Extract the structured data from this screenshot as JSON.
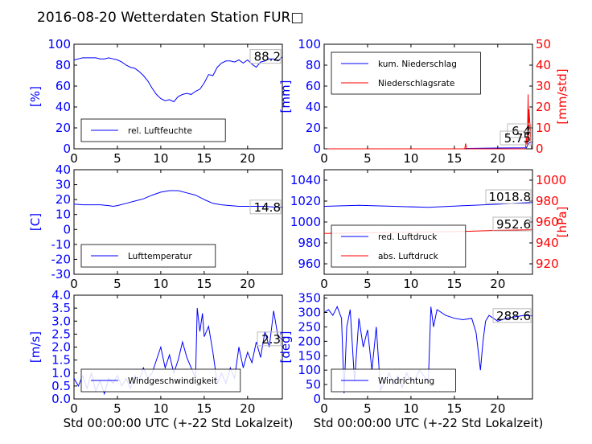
{
  "title": "2016-08-20 Wetterdaten Station FUR□",
  "colors": {
    "primary": "#0000ff",
    "secondary": "#ff0000",
    "axis": "#000000"
  },
  "chart_data": [
    {
      "type": "line",
      "xlim": [
        0,
        24
      ],
      "xticks": [
        0,
        5,
        10,
        15,
        20
      ],
      "ylabel": "[%]",
      "ylim": [
        0,
        100
      ],
      "yticks": [
        0,
        20,
        40,
        60,
        80,
        100
      ],
      "current_value": "88.2",
      "legend": {
        "placement": "lower-left",
        "entries": [
          "rel. Luftfeuchte"
        ]
      },
      "series": [
        {
          "name": "rel. Luftfeuchte",
          "color": "#0000ff",
          "x": [
            0,
            0.5,
            1,
            1.5,
            2,
            2.5,
            3,
            3.5,
            4,
            4.5,
            5,
            5.5,
            6,
            6.5,
            7,
            7.5,
            8,
            8.5,
            9,
            9.5,
            10,
            10.5,
            11,
            11.5,
            12,
            12.5,
            13,
            13.5,
            14,
            14.5,
            15,
            15.5,
            16,
            16.5,
            17,
            17.5,
            18,
            18.5,
            19,
            19.5,
            20,
            20.5,
            21,
            21.5,
            22,
            22.5,
            23,
            23.5,
            24
          ],
          "y": [
            85,
            86,
            87,
            87,
            87,
            87,
            86,
            86,
            87,
            86,
            85,
            83,
            80,
            78,
            77,
            74,
            70,
            65,
            58,
            52,
            48,
            46,
            47,
            45,
            50,
            52,
            53,
            52,
            55,
            57,
            63,
            71,
            70,
            78,
            82,
            84,
            84,
            83,
            85,
            82,
            85,
            81,
            78,
            83,
            84,
            86,
            86,
            84,
            88
          ]
        }
      ]
    },
    {
      "type": "line",
      "xlim": [
        0,
        24
      ],
      "xticks": [
        0,
        5,
        10,
        15,
        20
      ],
      "ylabel": "[mm]",
      "ylim": [
        0,
        100
      ],
      "yticks": [
        0,
        20,
        40,
        60,
        80,
        100
      ],
      "ylabel2": "[mm/std]",
      "ylim2": [
        0,
        50
      ],
      "yticks2": [
        0,
        10,
        20,
        30,
        40,
        50
      ],
      "current_values": [
        "6.4",
        "5.75"
      ],
      "legend": {
        "placement": "upper-left",
        "entries": [
          "kum. Niederschlag",
          "Niederschlagsrate"
        ]
      },
      "series": [
        {
          "name": "kum. Niederschlag",
          "color": "#0000ff",
          "axis": "left",
          "x": [
            0,
            16,
            16.5,
            20,
            23.3,
            23.6,
            24
          ],
          "y": [
            0,
            0,
            0.4,
            0.8,
            1.0,
            5.5,
            6.4
          ]
        },
        {
          "name": "Niederschlagsrate",
          "color": "#ff0000",
          "axis": "right",
          "x": [
            0,
            16.2,
            16.3,
            16.4,
            16.5,
            23.2,
            23.3,
            23.4,
            23.5,
            23.55,
            23.6,
            23.7,
            23.8,
            23.9,
            24
          ],
          "y": [
            0,
            0,
            2.5,
            0.3,
            0,
            0,
            6,
            1,
            26,
            4,
            19,
            12,
            3,
            0,
            0
          ]
        }
      ]
    },
    {
      "type": "line",
      "xlim": [
        0,
        24
      ],
      "xticks": [
        0,
        5,
        10,
        15,
        20
      ],
      "ylabel": "[C]",
      "ylim": [
        -30,
        40
      ],
      "yticks": [
        -30,
        -20,
        -10,
        0,
        10,
        20,
        30,
        40
      ],
      "current_value": "14.8",
      "legend": {
        "placement": "lower-left",
        "entries": [
          "Lufttemperatur"
        ]
      },
      "series": [
        {
          "name": "Lufttemperatur",
          "color": "#0000ff",
          "x": [
            0,
            1,
            2,
            3,
            4,
            4.5,
            5,
            6,
            7,
            8,
            9,
            10,
            11,
            12,
            13,
            14,
            15,
            16,
            16.5,
            17,
            18,
            19,
            20,
            21,
            22,
            23,
            24
          ],
          "y": [
            17,
            16.5,
            16.5,
            16.5,
            16,
            15.5,
            16,
            17.5,
            19,
            20.5,
            23,
            25,
            26,
            26,
            24.5,
            23,
            20,
            17.5,
            17,
            16.5,
            16,
            15.5,
            15.5,
            15.5,
            15.5,
            15,
            14.8
          ]
        }
      ]
    },
    {
      "type": "line",
      "xlim": [
        0,
        24
      ],
      "xticks": [
        0,
        5,
        10,
        15,
        20
      ],
      "ylabel": "",
      "ylim": [
        950,
        1050
      ],
      "yticks": [
        960,
        980,
        1000,
        1020,
        1040
      ],
      "ylabel2": "[hPa]",
      "ylim2": [
        910,
        1010
      ],
      "yticks2": [
        920,
        940,
        960,
        980,
        1000
      ],
      "current_values": [
        "1018.8",
        "952.6"
      ],
      "legend": {
        "placement": "lower-left",
        "entries": [
          "red. Luftdruck",
          "abs. Luftdruck"
        ]
      },
      "series": [
        {
          "name": "red. Luftdruck",
          "color": "#0000ff",
          "axis": "left",
          "x": [
            0,
            4,
            8,
            12,
            16,
            20,
            24
          ],
          "y": [
            1015,
            1016,
            1015,
            1014,
            1015.5,
            1017,
            1018.8
          ]
        },
        {
          "name": "abs. Luftdruck",
          "color": "#ff0000",
          "axis": "right",
          "x": [
            0,
            4,
            8,
            12,
            16,
            20,
            24
          ],
          "y": [
            949,
            949.5,
            950,
            950.5,
            951,
            952,
            952.6
          ]
        }
      ]
    },
    {
      "type": "line",
      "xlabel": "Std 00:00:00 UTC (+-22 Std Lokalzeit)",
      "xlim": [
        0,
        24
      ],
      "xticks": [
        0,
        5,
        10,
        15,
        20
      ],
      "ylabel": "[m/s]",
      "ylim": [
        0,
        4
      ],
      "yticks": [
        0,
        0.5,
        1.0,
        1.5,
        2.0,
        2.5,
        3.0,
        3.5,
        4.0
      ],
      "current_value": "2.3",
      "legend": {
        "placement": "lower-left",
        "entries": [
          "Windgeschwindigkeit"
        ]
      },
      "series": [
        {
          "name": "Windgeschwindigkeit",
          "color": "#0000ff",
          "x": [
            0,
            0.5,
            1,
            1.5,
            2,
            2.5,
            3,
            3.5,
            4,
            4.5,
            5,
            5.5,
            6,
            6.5,
            7,
            7.5,
            8,
            8.5,
            9,
            9.5,
            10,
            10.5,
            11,
            11.5,
            12,
            12.5,
            13,
            13.5,
            14,
            14.2,
            14.5,
            14.8,
            15,
            15.5,
            16,
            16.5,
            17,
            17.5,
            18,
            18.5,
            19,
            19.5,
            20,
            20.5,
            21,
            21.5,
            22,
            22.5,
            23,
            23.5,
            24
          ],
          "y": [
            0.8,
            0.5,
            0.9,
            0.4,
            1.0,
            0.3,
            0.7,
            0.2,
            0.8,
            0.6,
            0.9,
            0.5,
            0.8,
            0.4,
            0.9,
            0.7,
            1.2,
            0.8,
            1.0,
            1.5,
            2.0,
            1.2,
            1.7,
            1.0,
            1.5,
            2.2,
            1.6,
            1.2,
            0.8,
            3.5,
            2.6,
            3.3,
            2.4,
            2.8,
            1.8,
            0.6,
            1.0,
            0.6,
            1.2,
            0.8,
            2.0,
            1.2,
            1.8,
            1.4,
            2.2,
            1.6,
            2.6,
            2.0,
            3.4,
            2.4,
            2.3
          ]
        }
      ]
    },
    {
      "type": "line",
      "xlabel": "Std 00:00:00 UTC (+-22 Std Lokalzeit)",
      "xlim": [
        0,
        24
      ],
      "xticks": [
        0,
        5,
        10,
        15,
        20
      ],
      "ylabel": "[deg]",
      "ylim": [
        0,
        360
      ],
      "yticks": [
        0,
        50,
        100,
        150,
        200,
        250,
        300,
        350
      ],
      "current_value": "288.6",
      "legend": {
        "placement": "lower-left",
        "entries": [
          "Windrichtung"
        ]
      },
      "series": [
        {
          "name": "Windrichtung",
          "color": "#0000ff",
          "x": [
            0,
            0.5,
            1,
            1.5,
            2,
            2.3,
            2.6,
            3,
            3.5,
            4,
            4.5,
            5,
            5.5,
            6,
            6.5,
            7,
            7.5,
            8,
            8.5,
            9,
            9.5,
            10,
            10.5,
            11,
            11.5,
            12,
            12.3,
            12.6,
            13,
            13.5,
            14,
            15,
            16,
            17,
            17.5,
            18,
            18.3,
            18.6,
            19,
            19.5,
            20,
            21,
            22,
            23,
            24
          ],
          "y": [
            300,
            310,
            290,
            320,
            280,
            20,
            250,
            310,
            60,
            280,
            180,
            240,
            100,
            250,
            30,
            60,
            90,
            50,
            80,
            40,
            90,
            60,
            70,
            100,
            80,
            60,
            320,
            250,
            310,
            300,
            290,
            280,
            275,
            280,
            230,
            100,
            200,
            270,
            290,
            280,
            270,
            280,
            285,
            290,
            288
          ]
        }
      ]
    }
  ]
}
